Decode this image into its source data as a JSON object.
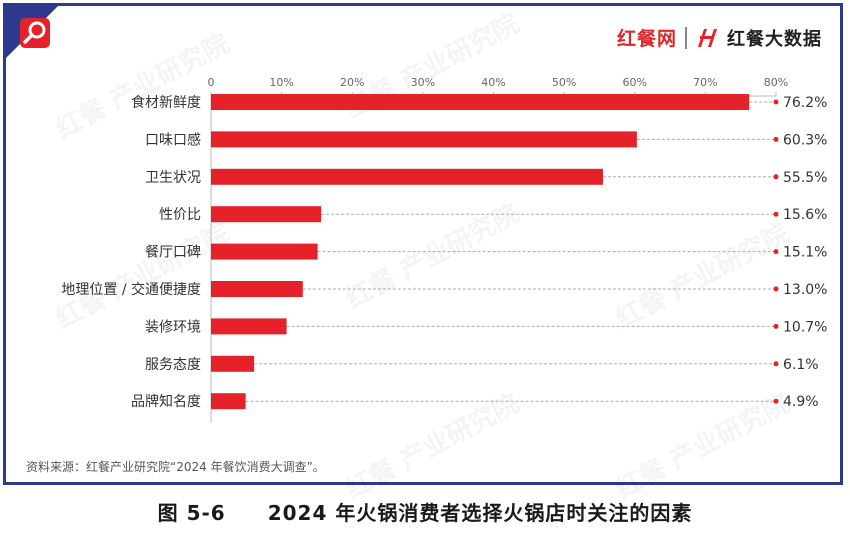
{
  "brand": {
    "name1": "红餐网",
    "name2": "红餐大数据",
    "watermark": "红餐 产业研究院"
  },
  "colors": {
    "bar": "#e5222a",
    "frame": "#2b3a8f",
    "marker": "#e5222a"
  },
  "chart_data": {
    "type": "bar",
    "orientation": "horizontal",
    "categories": [
      "食材新鲜度",
      "口味口感",
      "卫生状况",
      "性价比",
      "餐厅口碑",
      "地理位置 / 交通便捷度",
      "装修环境",
      "服务态度",
      "品牌知名度"
    ],
    "values": [
      76.2,
      60.3,
      55.5,
      15.6,
      15.1,
      13.0,
      10.7,
      6.1,
      4.9
    ],
    "value_labels": [
      "76.2%",
      "60.3%",
      "55.5%",
      "15.6%",
      "15.1%",
      "13.0%",
      "10.7%",
      "6.1%",
      "4.9%"
    ],
    "xlim": [
      0,
      80
    ],
    "xticks": [
      0,
      10,
      20,
      30,
      40,
      50,
      60,
      70,
      80
    ],
    "xtick_labels": [
      "0",
      "10%",
      "20%",
      "30%",
      "40%",
      "50%",
      "60%",
      "70%",
      "80%"
    ],
    "axis_position": "top"
  },
  "source": "资料来源：红餐产业研究院“2024 年餐饮消费大调查”。",
  "caption": "图 5-6　　2024 年火锅消费者选择火锅店时关注的因素"
}
